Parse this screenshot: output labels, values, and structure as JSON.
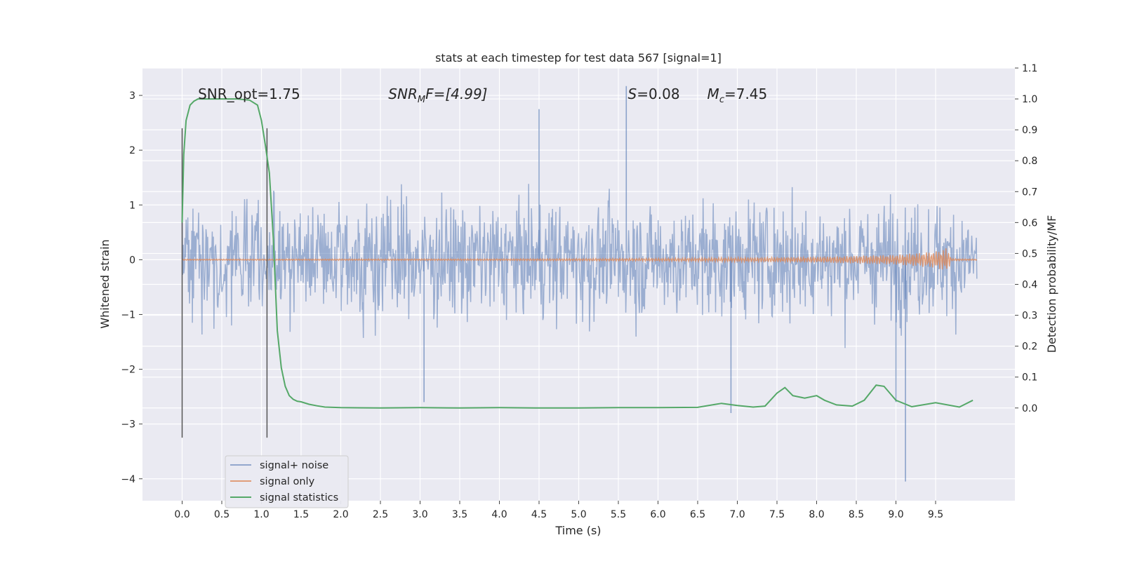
{
  "chart_data": {
    "type": "line",
    "title": "stats at each timestep for test data 567 [signal=1]",
    "xlabel": "Time (s)",
    "ylabel": "Whitened strain",
    "ylabel_right": "Detection probability/MF",
    "xlim": [
      -0.5,
      10.5
    ],
    "ylim": [
      -4.4,
      3.5
    ],
    "ylim_right": [
      -0.3,
      1.1
    ],
    "xticks": [
      0.0,
      0.5,
      1.0,
      1.5,
      2.0,
      2.5,
      3.0,
      3.5,
      4.0,
      4.5,
      5.0,
      5.5,
      6.0,
      6.5,
      7.0,
      7.5,
      8.0,
      8.5,
      9.0,
      9.5
    ],
    "xtick_labels": [
      "0.0",
      "0.5",
      "1.0",
      "1.5",
      "2.0",
      "2.5",
      "3.0",
      "3.5",
      "4.0",
      "4.5",
      "5.0",
      "5.5",
      "6.0",
      "6.5",
      "7.0",
      "7.5",
      "8.0",
      "8.5",
      "9.0",
      "9.5"
    ],
    "yticks_left": [
      -4,
      -3,
      -2,
      -1,
      0,
      1,
      2,
      3
    ],
    "ytick_labels_left": [
      "−4",
      "−3",
      "−2",
      "−1",
      "0",
      "1",
      "2",
      "3"
    ],
    "yticks_right": [
      0.0,
      0.1,
      0.2,
      0.3,
      0.4,
      0.5,
      0.6,
      0.7,
      0.8,
      0.9,
      1.0,
      1.1
    ],
    "ytick_labels_right": [
      "0.0",
      "0.1",
      "0.2",
      "0.3",
      "0.4",
      "0.5",
      "0.6",
      "0.7",
      "0.8",
      "0.9",
      "1.0",
      "1.1"
    ],
    "grid": true,
    "legend_position": "lower-left",
    "colors": {
      "background": "#eaeaf2",
      "grid": "#ffffff",
      "noise": "#4c72b0",
      "signal": "#dd8452",
      "statistics": "#55a868",
      "markers": "#555555"
    },
    "annotations": [
      {
        "text": "SNR_opt=1.75",
        "x": 0.2,
        "y": 1.0
      },
      {
        "text": "SNR",
        "sub": "M",
        "tail": "F=[4.99]",
        "x": 2.6,
        "y": 1.0
      },
      {
        "text": "S",
        "tail": "=0.08",
        "x": 5.62,
        "y": 1.0
      },
      {
        "text": "M",
        "sub": "c",
        "tail": "=7.45",
        "x": 6.62,
        "y": 1.0
      }
    ],
    "marker_lines": [
      {
        "x": 0.0,
        "y_range": [
          -3.25,
          2.4
        ]
      },
      {
        "x": 1.07,
        "y_range": [
          -3.25,
          2.4
        ]
      }
    ],
    "series": [
      {
        "name": "signal+ noise",
        "axis": "left",
        "kind": "noise",
        "x_range": [
          0.0,
          10.02
        ],
        "envelope": [
          -1.25,
          1.25
        ],
        "extremes": [
          [
            5.6,
            3.17
          ],
          [
            9.12,
            -4.05
          ],
          [
            6.92,
            -2.8
          ],
          [
            4.5,
            2.75
          ],
          [
            9.0,
            -2.6
          ],
          [
            3.05,
            -2.6
          ]
        ]
      },
      {
        "name": "signal only",
        "axis": "left",
        "kind": "chirp",
        "x_range": [
          0.0,
          10.02
        ],
        "envelope": [
          [
            0.0,
            0.01
          ],
          [
            4.0,
            0.015
          ],
          [
            6.0,
            0.025
          ],
          [
            8.0,
            0.05
          ],
          [
            9.0,
            0.09
          ],
          [
            9.5,
            0.15
          ],
          [
            9.65,
            0.22
          ],
          [
            9.7,
            0.02
          ],
          [
            10.02,
            0.01
          ]
        ]
      },
      {
        "name": "signal statistics",
        "axis": "right",
        "kind": "line",
        "x": [
          0.0,
          0.02,
          0.05,
          0.1,
          0.15,
          0.2,
          0.3,
          0.5,
          0.7,
          0.85,
          0.95,
          1.0,
          1.05,
          1.1,
          1.15,
          1.2,
          1.25,
          1.3,
          1.35,
          1.4,
          1.45,
          1.5,
          1.6,
          1.7,
          1.8,
          2.0,
          2.5,
          3.0,
          3.5,
          4.0,
          4.5,
          5.0,
          5.5,
          6.0,
          6.5,
          6.8,
          7.0,
          7.2,
          7.35,
          7.5,
          7.6,
          7.7,
          7.85,
          8.0,
          8.1,
          8.25,
          8.45,
          8.6,
          8.75,
          8.85,
          9.0,
          9.2,
          9.5,
          9.8,
          9.97
        ],
        "y": [
          0.6,
          0.82,
          0.93,
          0.98,
          0.993,
          1.0,
          1.0,
          1.0,
          1.0,
          0.996,
          0.98,
          0.93,
          0.85,
          0.76,
          0.55,
          0.25,
          0.13,
          0.07,
          0.04,
          0.028,
          0.022,
          0.02,
          0.012,
          0.007,
          0.003,
          0.001,
          0.0,
          0.001,
          0.0,
          0.001,
          0.0,
          0.0,
          0.001,
          0.001,
          0.002,
          0.015,
          0.008,
          0.003,
          0.006,
          0.048,
          0.066,
          0.04,
          0.032,
          0.04,
          0.025,
          0.01,
          0.006,
          0.025,
          0.074,
          0.07,
          0.025,
          0.004,
          0.017,
          0.003,
          0.025
        ]
      }
    ]
  }
}
